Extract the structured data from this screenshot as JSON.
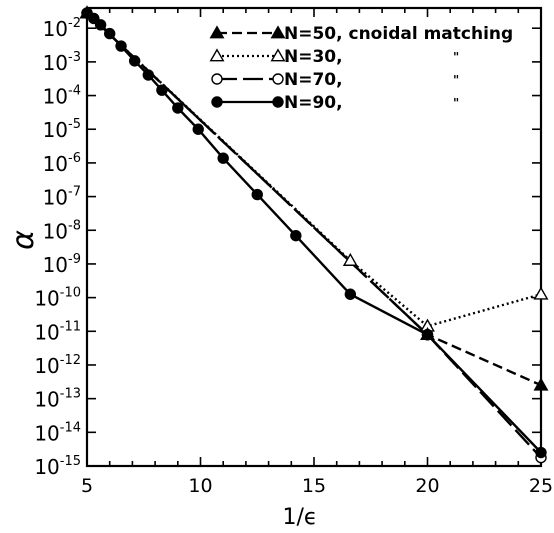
{
  "chart_data": {
    "type": "line",
    "xlabel": "1/ϵ",
    "ylabel": "α",
    "xlim": [
      5,
      25
    ],
    "ylim_log10": [
      -15,
      -1.4
    ],
    "yscale": "log",
    "grid": false,
    "legend_placement": "top-center",
    "x_ticks": [
      {
        "value": 5,
        "label": "5"
      },
      {
        "value": 10,
        "label": "10"
      },
      {
        "value": 15,
        "label": "15"
      },
      {
        "value": 20,
        "label": "20"
      },
      {
        "value": 25,
        "label": "25"
      }
    ],
    "y_ticks": [
      {
        "exp": -2,
        "label": "10",
        "sup": "-2"
      },
      {
        "exp": -3,
        "label": "10",
        "sup": "-3"
      },
      {
        "exp": -4,
        "label": "10",
        "sup": "-4"
      },
      {
        "exp": -5,
        "label": "10",
        "sup": "-5"
      },
      {
        "exp": -6,
        "label": "10",
        "sup": "-6"
      },
      {
        "exp": -7,
        "label": "10",
        "sup": "-7"
      },
      {
        "exp": -8,
        "label": "10",
        "sup": "-8"
      },
      {
        "exp": -9,
        "label": "10",
        "sup": "-9"
      },
      {
        "exp": -10,
        "label": "10",
        "sup": "-10"
      },
      {
        "exp": -11,
        "label": "10",
        "sup": "-11"
      },
      {
        "exp": -12,
        "label": "10",
        "sup": "-12"
      },
      {
        "exp": -13,
        "label": "10",
        "sup": "-13"
      },
      {
        "exp": -14,
        "label": "10",
        "sup": "-14"
      },
      {
        "exp": -15,
        "label": "10",
        "sup": "-15"
      }
    ],
    "legend": [
      {
        "label": "N=50, cnoidal matching",
        "suffix": "",
        "marker": "triangle-filled",
        "dash": "10,5"
      },
      {
        "label": "N=30,",
        "suffix": "\"",
        "marker": "triangle-open",
        "dash": "2,3"
      },
      {
        "label": "N=70,",
        "suffix": "\"",
        "marker": "circle-open",
        "dash": "20,6"
      },
      {
        "label": "N=90,",
        "suffix": "\"",
        "marker": "circle-filled",
        "dash": ""
      }
    ],
    "series": [
      {
        "name": "N=50, cnoidal matching",
        "marker": "triangle-filled",
        "dash": "10,5",
        "points": [
          {
            "x": 5.0,
            "log10y": -1.55
          },
          {
            "x": 20.0,
            "log10y": -11.1
          },
          {
            "x": 25.0,
            "log10y": -12.6
          }
        ]
      },
      {
        "name": "N=30,",
        "marker": "triangle-open",
        "dash": "2,3",
        "points": [
          {
            "x": 5.0,
            "log10y": -1.55
          },
          {
            "x": 16.6,
            "log10y": -8.9
          },
          {
            "x": 20.0,
            "log10y": -10.85
          },
          {
            "x": 25.0,
            "log10y": -9.9
          }
        ]
      },
      {
        "name": "N=70,",
        "marker": "circle-open",
        "dash": "20,6",
        "points": [
          {
            "x": 5.0,
            "log10y": -1.55
          },
          {
            "x": 20.0,
            "log10y": -11.1
          },
          {
            "x": 25.0,
            "log10y": -14.75
          }
        ]
      },
      {
        "name": "N=90,",
        "marker": "circle-filled",
        "dash": "",
        "points": [
          {
            "x": 5.0,
            "log10y": -1.55
          },
          {
            "x": 5.3,
            "log10y": -1.71
          },
          {
            "x": 5.6,
            "log10y": -1.9
          },
          {
            "x": 6.0,
            "log10y": -2.16
          },
          {
            "x": 6.5,
            "log10y": -2.53
          },
          {
            "x": 7.1,
            "log10y": -2.97
          },
          {
            "x": 7.7,
            "log10y": -3.39
          },
          {
            "x": 8.3,
            "log10y": -3.84
          },
          {
            "x": 9.0,
            "log10y": -4.37
          },
          {
            "x": 9.9,
            "log10y": -5.0
          },
          {
            "x": 11.0,
            "log10y": -5.86
          },
          {
            "x": 12.5,
            "log10y": -6.94
          },
          {
            "x": 14.2,
            "log10y": -8.16
          },
          {
            "x": 16.6,
            "log10y": -9.9
          },
          {
            "x": 20.0,
            "log10y": -11.1
          },
          {
            "x": 25.0,
            "log10y": -14.6
          }
        ]
      }
    ]
  }
}
